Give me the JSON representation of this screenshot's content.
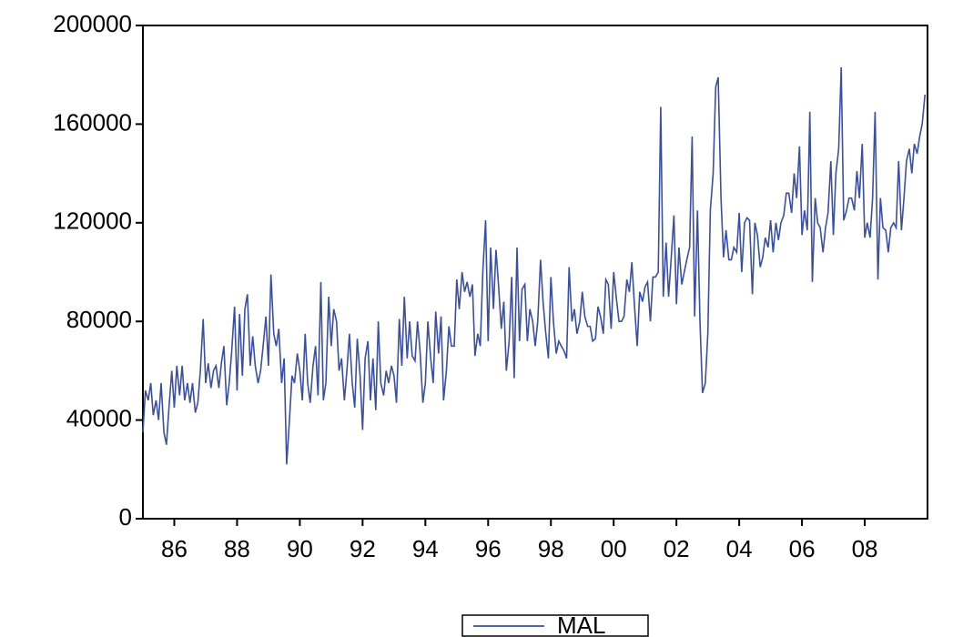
{
  "chart_data": {
    "type": "line",
    "x": [
      1985.0,
      1985.08,
      1985.17,
      1985.25,
      1985.33,
      1985.42,
      1985.5,
      1985.58,
      1985.67,
      1985.75,
      1985.83,
      1985.92,
      1986.0,
      1986.08,
      1986.17,
      1986.25,
      1986.33,
      1986.42,
      1986.5,
      1986.58,
      1986.67,
      1986.75,
      1986.83,
      1986.92,
      1987.0,
      1987.08,
      1987.17,
      1987.25,
      1987.33,
      1987.42,
      1987.5,
      1987.58,
      1987.67,
      1987.75,
      1987.83,
      1987.92,
      1988.0,
      1988.08,
      1988.17,
      1988.25,
      1988.33,
      1988.42,
      1988.5,
      1988.58,
      1988.67,
      1988.75,
      1988.83,
      1988.92,
      1989.0,
      1989.08,
      1989.17,
      1989.25,
      1989.33,
      1989.42,
      1989.5,
      1989.58,
      1989.67,
      1989.75,
      1989.83,
      1989.92,
      1990.0,
      1990.08,
      1990.17,
      1990.25,
      1990.33,
      1990.42,
      1990.5,
      1990.58,
      1990.67,
      1990.75,
      1990.83,
      1990.92,
      1991.0,
      1991.08,
      1991.17,
      1991.25,
      1991.33,
      1991.42,
      1991.5,
      1991.58,
      1991.67,
      1991.75,
      1991.83,
      1991.92,
      1992.0,
      1992.08,
      1992.17,
      1992.25,
      1992.33,
      1992.42,
      1992.5,
      1992.58,
      1992.67,
      1992.75,
      1992.83,
      1992.92,
      1993.0,
      1993.08,
      1993.17,
      1993.25,
      1993.33,
      1993.42,
      1993.5,
      1993.58,
      1993.67,
      1993.75,
      1993.83,
      1993.92,
      1994.0,
      1994.08,
      1994.17,
      1994.25,
      1994.33,
      1994.42,
      1994.5,
      1994.58,
      1994.67,
      1994.75,
      1994.83,
      1994.92,
      1995.0,
      1995.08,
      1995.17,
      1995.25,
      1995.33,
      1995.42,
      1995.5,
      1995.58,
      1995.67,
      1995.75,
      1995.83,
      1995.92,
      1996.0,
      1996.08,
      1996.17,
      1996.25,
      1996.33,
      1996.42,
      1996.5,
      1996.58,
      1996.67,
      1996.75,
      1996.83,
      1996.92,
      1997.0,
      1997.08,
      1997.17,
      1997.25,
      1997.33,
      1997.42,
      1997.5,
      1997.58,
      1997.67,
      1997.75,
      1997.83,
      1997.92,
      1998.0,
      1998.08,
      1998.17,
      1998.25,
      1998.33,
      1998.42,
      1998.5,
      1998.58,
      1998.67,
      1998.75,
      1998.83,
      1998.92,
      1999.0,
      1999.08,
      1999.17,
      1999.25,
      1999.33,
      1999.42,
      1999.5,
      1999.58,
      1999.67,
      1999.75,
      1999.83,
      1999.92,
      2000.0,
      2000.08,
      2000.17,
      2000.25,
      2000.33,
      2000.42,
      2000.5,
      2000.58,
      2000.67,
      2000.75,
      2000.83,
      2000.92,
      2001.0,
      2001.08,
      2001.17,
      2001.25,
      2001.33,
      2001.42,
      2001.5,
      2001.58,
      2001.67,
      2001.75,
      2001.83,
      2001.92,
      2002.0,
      2002.08,
      2002.17,
      2002.25,
      2002.33,
      2002.42,
      2002.5,
      2002.58,
      2002.67,
      2002.75,
      2002.83,
      2002.92,
      2003.0,
      2003.08,
      2003.17,
      2003.25,
      2003.33,
      2003.42,
      2003.5,
      2003.58,
      2003.67,
      2003.75,
      2003.83,
      2003.92,
      2004.0,
      2004.08,
      2004.17,
      2004.25,
      2004.33,
      2004.42,
      2004.5,
      2004.58,
      2004.67,
      2004.75,
      2004.83,
      2004.92,
      2005.0,
      2005.08,
      2005.17,
      2005.25,
      2005.33,
      2005.42,
      2005.5,
      2005.58,
      2005.67,
      2005.75,
      2005.83,
      2005.92,
      2006.0,
      2006.08,
      2006.17,
      2006.25,
      2006.33,
      2006.42,
      2006.5,
      2006.58,
      2006.67,
      2006.75,
      2006.83,
      2006.92,
      2007.0,
      2007.08,
      2007.17,
      2007.25,
      2007.33,
      2007.42,
      2007.5,
      2007.58,
      2007.67,
      2007.75,
      2007.83,
      2007.92,
      2008.0,
      2008.08,
      2008.17,
      2008.25,
      2008.33,
      2008.42,
      2008.5,
      2008.58,
      2008.67,
      2008.75,
      2008.83,
      2008.92,
      2009.0,
      2009.08,
      2009.17,
      2009.25,
      2009.33,
      2009.42,
      2009.5,
      2009.58,
      2009.67,
      2009.75,
      2009.83,
      2009.92
    ],
    "series": [
      {
        "name": "MAL",
        "color": "#3a4fa0",
        "values": [
          35000,
          52000,
          48000,
          55000,
          42000,
          48000,
          40000,
          55000,
          35000,
          30000,
          45000,
          60000,
          45000,
          62000,
          50000,
          62000,
          48000,
          55000,
          47000,
          55000,
          43000,
          47000,
          60000,
          81000,
          55000,
          63000,
          53000,
          60000,
          62000,
          53000,
          63000,
          70000,
          46000,
          55000,
          68000,
          86000,
          52000,
          83000,
          58000,
          85000,
          91000,
          62000,
          74000,
          62000,
          55000,
          60000,
          70000,
          82000,
          62000,
          99000,
          75000,
          70000,
          77000,
          55000,
          65000,
          22000,
          40000,
          58000,
          55000,
          67000,
          60000,
          48000,
          75000,
          55000,
          47000,
          62000,
          70000,
          50000,
          96000,
          48000,
          55000,
          90000,
          70000,
          85000,
          80000,
          60000,
          65000,
          48000,
          60000,
          75000,
          55000,
          45000,
          73000,
          58000,
          36000,
          65000,
          72000,
          48000,
          65000,
          44000,
          80000,
          55000,
          50000,
          60000,
          55000,
          62000,
          58000,
          47000,
          81000,
          62000,
          90000,
          65000,
          80000,
          66000,
          64000,
          80000,
          68000,
          47000,
          55000,
          80000,
          65000,
          55000,
          84000,
          67000,
          82000,
          48000,
          60000,
          78000,
          70000,
          70000,
          97000,
          85000,
          100000,
          92000,
          96000,
          90000,
          95000,
          66000,
          75000,
          70000,
          100000,
          121000,
          72000,
          110000,
          85000,
          109000,
          95000,
          77000,
          88000,
          60000,
          72000,
          98000,
          57000,
          110000,
          72000,
          93000,
          95000,
          72000,
          85000,
          80000,
          70000,
          80000,
          105000,
          88000,
          76000,
          65000,
          98000,
          80000,
          67000,
          72000,
          70000,
          68000,
          65000,
          102000,
          80000,
          85000,
          75000,
          80000,
          92000,
          82000,
          78000,
          78000,
          72000,
          73000,
          86000,
          82000,
          75000,
          97000,
          95000,
          77000,
          100000,
          90000,
          80000,
          80000,
          82000,
          97000,
          92000,
          104000,
          85000,
          70000,
          92000,
          88000,
          94000,
          96000,
          80000,
          98000,
          98000,
          100000,
          167000,
          90000,
          112000,
          90000,
          105000,
          123000,
          87000,
          110000,
          95000,
          100000,
          105000,
          110000,
          155000,
          82000,
          125000,
          80000,
          51000,
          55000,
          75000,
          125000,
          140000,
          175000,
          179000,
          130000,
          106000,
          117000,
          105000,
          105000,
          110000,
          108000,
          124000,
          100000,
          120000,
          122000,
          121000,
          91000,
          120000,
          115000,
          102000,
          106000,
          114000,
          110000,
          121000,
          108000,
          120000,
          113000,
          120000,
          123000,
          132000,
          132000,
          124000,
          140000,
          130000,
          151000,
          115000,
          125000,
          117000,
          165000,
          96000,
          130000,
          120000,
          118000,
          108000,
          118000,
          124000,
          145000,
          115000,
          140000,
          150000,
          183000,
          121000,
          125000,
          130000,
          130000,
          125000,
          141000,
          130000,
          152000,
          114000,
          120000,
          114000,
          130000,
          165000,
          97000,
          130000,
          118000,
          117000,
          108000,
          118000,
          120000,
          118000,
          145000,
          117000,
          130000,
          145000,
          150000,
          140000,
          152000,
          148000,
          155000,
          160000,
          172000
        ]
      }
    ],
    "xlim": [
      1985,
      2010
    ],
    "xticks": [
      {
        "value": 1986,
        "label": "86"
      },
      {
        "value": 1988,
        "label": "88"
      },
      {
        "value": 1990,
        "label": "90"
      },
      {
        "value": 1992,
        "label": "92"
      },
      {
        "value": 1994,
        "label": "94"
      },
      {
        "value": 1996,
        "label": "96"
      },
      {
        "value": 1998,
        "label": "98"
      },
      {
        "value": 2000,
        "label": "00"
      },
      {
        "value": 2002,
        "label": "02"
      },
      {
        "value": 2004,
        "label": "04"
      },
      {
        "value": 2006,
        "label": "06"
      },
      {
        "value": 2008,
        "label": "08"
      }
    ],
    "ylim": [
      0,
      200000
    ],
    "yticks": [
      0,
      40000,
      80000,
      120000,
      160000,
      200000
    ],
    "legend": "bottom"
  }
}
